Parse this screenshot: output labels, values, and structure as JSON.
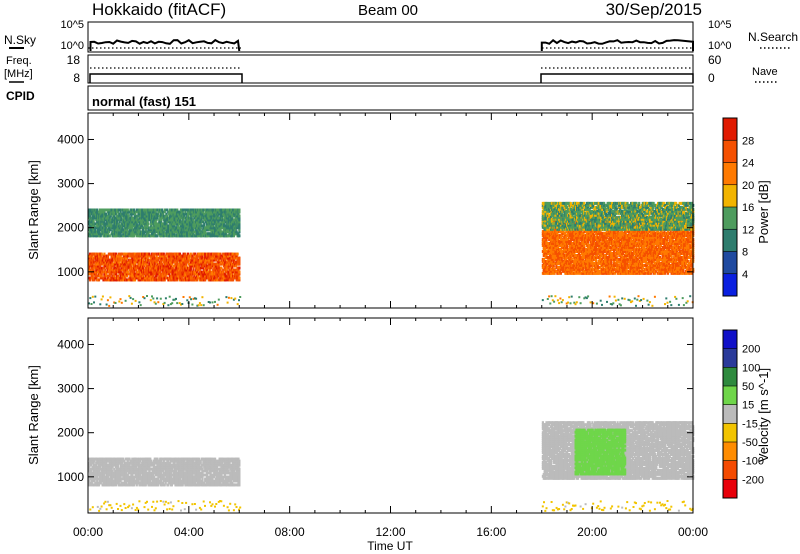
{
  "header": {
    "station": "Hokkaido (fitACF)",
    "beam": "Beam 00",
    "date": "30/Sep/2015"
  },
  "nsky_panel": {
    "left_label": "N.Sky",
    "left_ticks": [
      "10^5",
      "10^0"
    ],
    "right_label": "N.Search",
    "right_ticks": [
      "10^5",
      "10^0"
    ]
  },
  "freq_panel": {
    "left_label_1": "Freq.",
    "left_label_2": "[MHz]",
    "left_ticks": [
      "18",
      "8"
    ],
    "right_label": "Nave",
    "right_ticks": [
      "60",
      "0"
    ]
  },
  "cpid": {
    "label": "CPID",
    "mode": "normal (fast) 151"
  },
  "x_axis": {
    "label": "Time UT",
    "ticks": [
      "00:00",
      "04:00",
      "08:00",
      "12:00",
      "16:00",
      "20:00",
      "00:00"
    ]
  },
  "colors": {
    "power": [
      "#0a20e0",
      "#1f4aa0",
      "#2e7d6e",
      "#4e9c5e",
      "#f2b400",
      "#ff7a00",
      "#f55000",
      "#e01a00"
    ],
    "velocity": [
      "#e8000a",
      "#f54a00",
      "#ff8c00",
      "#f2c400",
      "#bbbbbb",
      "#6fd64a",
      "#2e8a3e",
      "#2a3a9a",
      "#1010c8"
    ]
  },
  "chart_data": [
    {
      "type": "heatmap",
      "title": "Power",
      "ylabel": "Slant Range [km]",
      "xlabel": "Time UT",
      "colorbar_label": "Power [dB]",
      "colorbar_ticks": [
        "28",
        "24",
        "20",
        "16",
        "12",
        "8",
        "4"
      ],
      "x_range_hours": [
        0,
        24
      ],
      "y_range_km": [
        180,
        4600
      ],
      "y_ticks": [
        "4000",
        "3000",
        "2000",
        "1000"
      ],
      "data_gaps_hours": [
        [
          6,
          18
        ]
      ],
      "bands": [
        {
          "t0": 0,
          "t1": 6,
          "r0": 850,
          "r1": 1450,
          "power": 26
        },
        {
          "t0": 0,
          "t1": 6,
          "r0": 1850,
          "r1": 2450,
          "power": 12
        },
        {
          "t0": 18,
          "t1": 24,
          "r0": 1000,
          "r1": 2300,
          "power": 24
        },
        {
          "t0": 18,
          "t1": 24,
          "r0": 2000,
          "r1": 2600,
          "power": 14
        }
      ]
    },
    {
      "type": "heatmap",
      "title": "Velocity",
      "ylabel": "Slant Range [km]",
      "xlabel": "Time UT",
      "colorbar_label": "Velocity [m s^-1]",
      "colorbar_ticks": [
        "200",
        "100",
        "50",
        "15",
        "-15",
        "-50",
        "-100",
        "-200"
      ],
      "x_range_hours": [
        0,
        24
      ],
      "y_range_km": [
        180,
        4600
      ],
      "y_ticks": [
        "4000",
        "3000",
        "2000",
        "1000"
      ],
      "data_gaps_hours": [
        [
          6,
          18
        ]
      ],
      "bands": [
        {
          "t0": 0,
          "t1": 6,
          "r0": 850,
          "r1": 1450,
          "velocity": 0
        },
        {
          "t0": 18,
          "t1": 24,
          "r0": 1000,
          "r1": 2300,
          "velocity": 0
        },
        {
          "t0": 19.3,
          "t1": 21.3,
          "r0": 1100,
          "r1": 2100,
          "velocity": 30
        }
      ]
    }
  ]
}
